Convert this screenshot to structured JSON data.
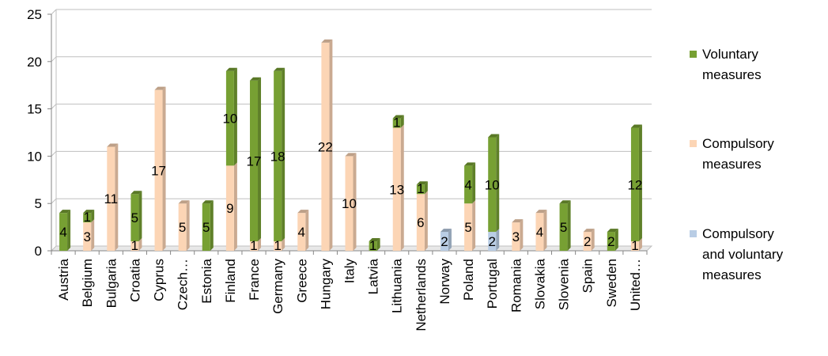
{
  "chart_data": {
    "type": "bar",
    "stacked": true,
    "categories": [
      "Austria",
      "Belgium",
      "Bulgaria",
      "Croatia",
      "Cyprus",
      "Czech…",
      "Estonia",
      "Finland",
      "France",
      "Germany",
      "Greece",
      "Hungary",
      "Italy",
      "Latvia",
      "Lithuania",
      "Netherlands",
      "Norway",
      "Poland",
      "Portugal",
      "Romania",
      "Slovakia",
      "Slovenia",
      "Spain",
      "Sweden",
      "United…"
    ],
    "series": [
      {
        "name": "Compulsory and voluntary measures",
        "color": "#b9cde5",
        "values": [
          0,
          0,
          0,
          0,
          0,
          0,
          0,
          0,
          0,
          0,
          0,
          0,
          0,
          0,
          0,
          0,
          2,
          0,
          2,
          0,
          0,
          0,
          0,
          0,
          0
        ]
      },
      {
        "name": "Compulsory measures",
        "color": "#fcd5b5",
        "values": [
          0,
          3,
          11,
          1,
          17,
          5,
          0,
          9,
          1,
          1,
          4,
          22,
          10,
          0,
          13,
          6,
          0,
          5,
          0,
          3,
          4,
          0,
          2,
          0,
          1
        ]
      },
      {
        "name": "Voluntary measures",
        "color": "#77a033",
        "values": [
          4,
          1,
          0,
          5,
          0,
          0,
          5,
          10,
          17,
          18,
          0,
          0,
          0,
          1,
          1,
          1,
          0,
          4,
          10,
          0,
          0,
          5,
          0,
          2,
          12
        ]
      }
    ],
    "data_labels": [
      [
        "4"
      ],
      [
        "3",
        "1"
      ],
      [
        "11"
      ],
      [
        "1",
        "5"
      ],
      [
        "17"
      ],
      [
        "5"
      ],
      [
        "5"
      ],
      [
        "9",
        "10"
      ],
      [
        "1",
        "17"
      ],
      [
        "1",
        "18"
      ],
      [
        "4"
      ],
      [
        "22"
      ],
      [
        "10"
      ],
      [
        "1"
      ],
      [
        "13",
        "1"
      ],
      [
        "6",
        "1"
      ],
      [
        "2"
      ],
      [
        "5",
        "4"
      ],
      [
        "2",
        "10"
      ],
      [
        "3"
      ],
      [
        "4"
      ],
      [
        "5"
      ],
      [
        "2"
      ],
      [
        "2"
      ],
      [
        "1",
        "12"
      ]
    ],
    "ylim": [
      0,
      25
    ],
    "yticks": [
      "0",
      "5",
      "10",
      "15",
      "20",
      "25"
    ],
    "grid": true,
    "legend_position": "right",
    "legend_order": [
      "Voluntary measures",
      "Compulsory measures",
      "Compulsory and voluntary measures"
    ],
    "legend_lines": {
      "Voluntary measures": [
        "Voluntary",
        "measures"
      ],
      "Compulsory measures": [
        "Compulsory",
        "measures"
      ],
      "Compulsory and voluntary measures": [
        "Compulsory",
        "and voluntary",
        "measures"
      ]
    }
  }
}
